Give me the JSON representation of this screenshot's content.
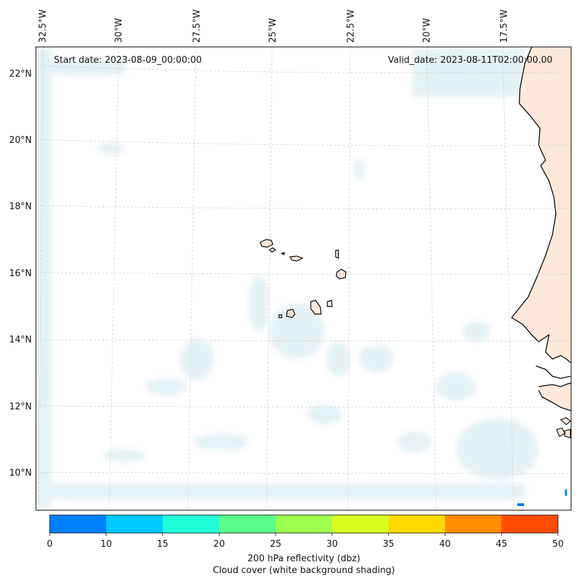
{
  "map": {
    "start_date_text": "Start date: 2023-08-09_00:00:00",
    "valid_date_text": "Valid_date: 2023-08-11T02:00:00.00",
    "lon_labels": [
      "32.5°W",
      "30°W",
      "27.5°W",
      "25°W",
      "22.5°W",
      "20°W",
      "17.5°W"
    ],
    "lat_labels": [
      "22°N",
      "20°N",
      "18°N",
      "16°N",
      "14°N",
      "12°N",
      "10°N"
    ],
    "gridlines": "dashed light gray",
    "land_color": "#fde8da",
    "cloud_color": "#cfe6ee"
  },
  "colorbar": {
    "ticks": [
      "0",
      "10",
      "15",
      "20",
      "25",
      "30",
      "35",
      "40",
      "45",
      "50"
    ],
    "colors": [
      "#0080ff",
      "#00c8ff",
      "#22ffd8",
      "#5cff8c",
      "#9cff52",
      "#d8ff20",
      "#ffd800",
      "#ff8c00",
      "#ff4c00"
    ],
    "label_line1": "200 hPa reflectivity (dbz)",
    "label_line2": "Cloud cover (white background shading)"
  }
}
